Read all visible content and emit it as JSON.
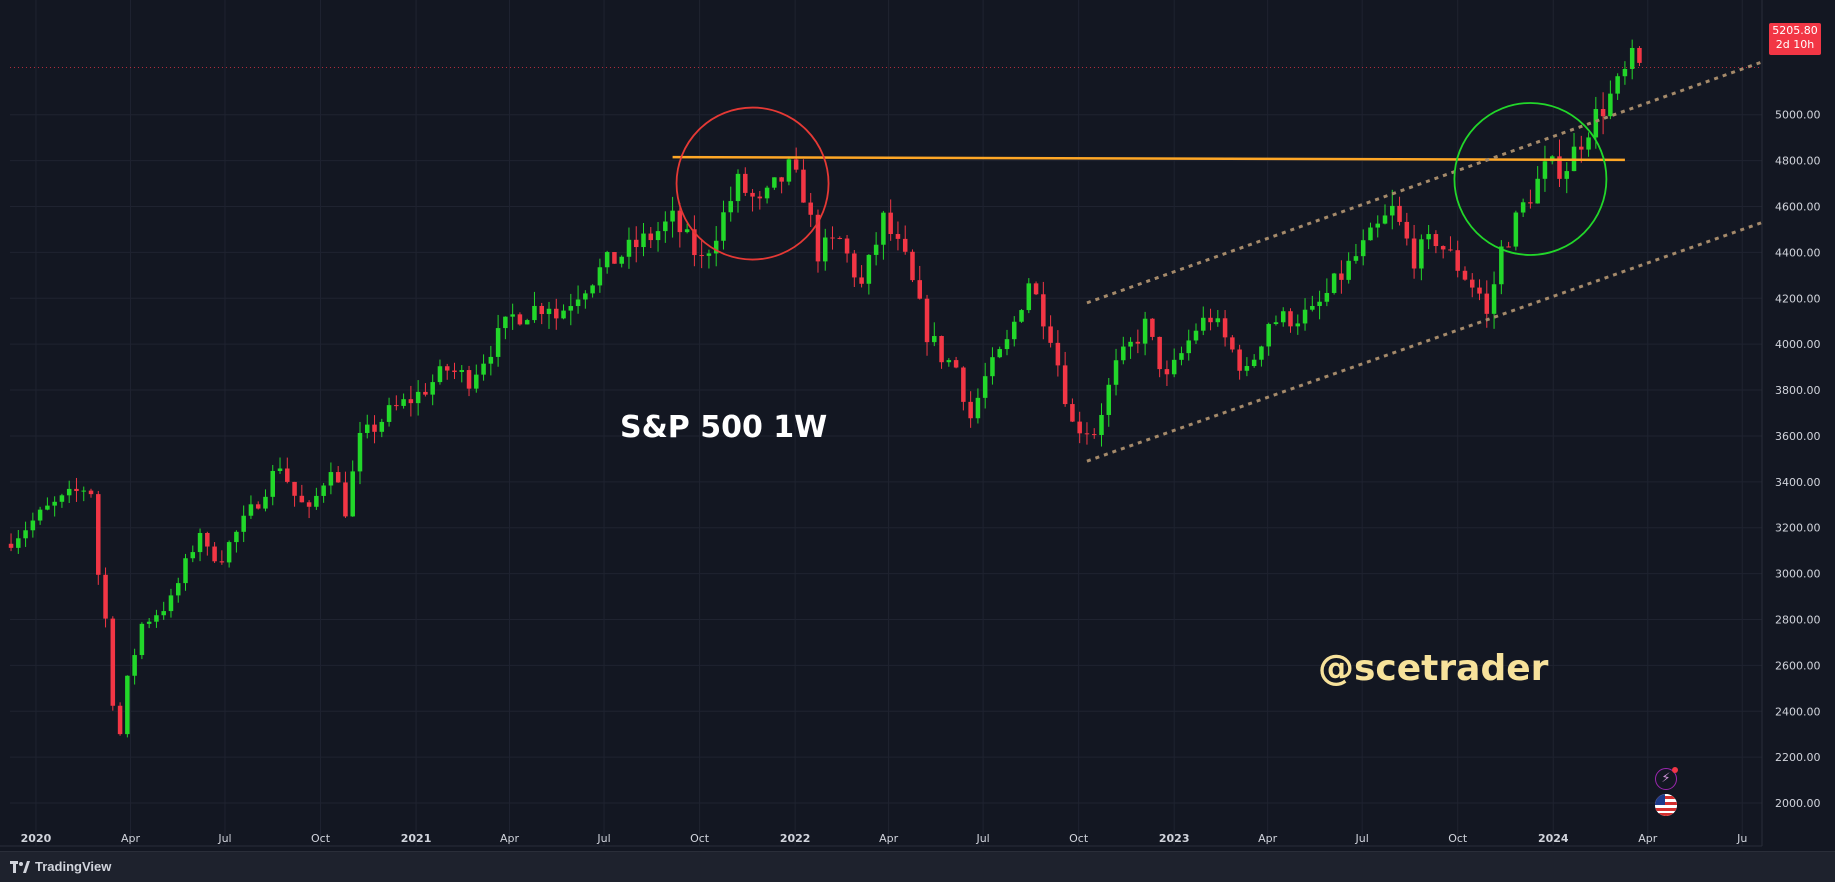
{
  "chart_data": {
    "type": "candlestick",
    "title": "S&P 500 1W",
    "ylim": [
      1900,
      5500
    ],
    "y_ticks": [
      2000,
      2200,
      2400,
      2600,
      2800,
      3000,
      3200,
      3400,
      3600,
      3800,
      4000,
      4200,
      4400,
      4600,
      4800,
      5000
    ],
    "x_ticks": [
      {
        "label": "2020",
        "date": "2020-01-01",
        "bold": true
      },
      {
        "label": "Apr",
        "date": "2020-04-01"
      },
      {
        "label": "Jul",
        "date": "2020-07-01"
      },
      {
        "label": "Oct",
        "date": "2020-10-01"
      },
      {
        "label": "2021",
        "date": "2021-01-01",
        "bold": true
      },
      {
        "label": "Apr",
        "date": "2021-04-01"
      },
      {
        "label": "Jul",
        "date": "2021-07-01"
      },
      {
        "label": "Oct",
        "date": "2021-10-01"
      },
      {
        "label": "2022",
        "date": "2022-01-01",
        "bold": true
      },
      {
        "label": "Apr",
        "date": "2022-04-01"
      },
      {
        "label": "Jul",
        "date": "2022-07-01"
      },
      {
        "label": "Oct",
        "date": "2022-10-01"
      },
      {
        "label": "2023",
        "date": "2023-01-01",
        "bold": true
      },
      {
        "label": "Apr",
        "date": "2023-04-01"
      },
      {
        "label": "Jul",
        "date": "2023-07-01"
      },
      {
        "label": "Oct",
        "date": "2023-10-01"
      },
      {
        "label": "2024",
        "date": "2024-01-01",
        "bold": true
      },
      {
        "label": "Apr",
        "date": "2024-04-01"
      },
      {
        "label": "Ju",
        "date": "2024-07-01"
      }
    ],
    "x_range": [
      "2019-12-07",
      "2024-07-20"
    ],
    "last_price": "5205.80",
    "countdown": "2d 10h",
    "colors": {
      "up": "#22d72a",
      "down": "#f23645",
      "background": "#131722",
      "grid": "#1f2330"
    },
    "price_path": [
      [
        "2019-12-08",
        3150
      ],
      [
        "2020-01-12",
        3280
      ],
      [
        "2020-02-19",
        3380
      ],
      [
        "2020-02-23",
        3360
      ],
      [
        "2020-03-01",
        3000
      ],
      [
        "2020-03-08",
        2800
      ],
      [
        "2020-03-15",
        2450
      ],
      [
        "2020-03-22",
        2300
      ],
      [
        "2020-03-29",
        2530
      ],
      [
        "2020-04-12",
        2780
      ],
      [
        "2020-05-10",
        2880
      ],
      [
        "2020-06-07",
        3190
      ],
      [
        "2020-06-14",
        3090
      ],
      [
        "2020-06-28",
        3080
      ],
      [
        "2020-07-26",
        3270
      ],
      [
        "2020-08-23",
        3480
      ],
      [
        "2020-09-06",
        3340
      ],
      [
        "2020-09-20",
        3260
      ],
      [
        "2020-10-11",
        3480
      ],
      [
        "2020-10-25",
        3280
      ],
      [
        "2020-11-08",
        3580
      ],
      [
        "2020-12-06",
        3700
      ],
      [
        "2021-01-03",
        3780
      ],
      [
        "2021-01-31",
        3890
      ],
      [
        "2021-02-21",
        3850
      ],
      [
        "2021-03-07",
        3940
      ],
      [
        "2021-04-04",
        4120
      ],
      [
        "2021-05-09",
        4180
      ],
      [
        "2021-05-16",
        4120
      ],
      [
        "2021-06-06",
        4230
      ],
      [
        "2021-07-04",
        4350
      ],
      [
        "2021-08-15",
        4470
      ],
      [
        "2021-09-05",
        4540
      ],
      [
        "2021-10-03",
        4360
      ],
      [
        "2021-10-24",
        4560
      ],
      [
        "2021-11-07",
        4700
      ],
      [
        "2021-11-28",
        4600
      ],
      [
        "2021-12-26",
        4760
      ],
      [
        "2022-01-09",
        4660
      ],
      [
        "2022-01-23",
        4400
      ],
      [
        "2022-02-13",
        4450
      ],
      [
        "2022-03-06",
        4250
      ],
      [
        "2022-03-27",
        4540
      ],
      [
        "2022-04-17",
        4360
      ],
      [
        "2022-05-08",
        4050
      ],
      [
        "2022-05-22",
        3950
      ],
      [
        "2022-06-05",
        3900
      ],
      [
        "2022-06-19",
        3680
      ],
      [
        "2022-07-03",
        3850
      ],
      [
        "2022-07-24",
        4000
      ],
      [
        "2022-08-14",
        4280
      ],
      [
        "2022-09-04",
        4050
      ],
      [
        "2022-09-25",
        3650
      ],
      [
        "2022-10-16",
        3620
      ],
      [
        "2022-11-06",
        3900
      ],
      [
        "2022-12-04",
        4080
      ],
      [
        "2022-12-25",
        3840
      ],
      [
        "2023-01-22",
        4070
      ],
      [
        "2023-02-05",
        4120
      ],
      [
        "2023-03-12",
        3870
      ],
      [
        "2023-04-02",
        4100
      ],
      [
        "2023-05-14",
        4130
      ],
      [
        "2023-06-11",
        4300
      ],
      [
        "2023-07-30",
        4580
      ],
      [
        "2023-08-20",
        4380
      ],
      [
        "2023-09-10",
        4460
      ],
      [
        "2023-10-22",
        4220
      ],
      [
        "2023-10-29",
        4120
      ],
      [
        "2023-11-12",
        4410
      ],
      [
        "2023-12-03",
        4600
      ],
      [
        "2023-12-24",
        4760
      ],
      [
        "2024-01-14",
        4780
      ],
      [
        "2024-02-04",
        4950
      ],
      [
        "2024-03-03",
        5120
      ],
      [
        "2024-03-17",
        5230
      ],
      [
        "2024-03-24",
        5205.8
      ]
    ],
    "annotations": {
      "resistance_line": {
        "from": [
          "2021-09-05",
          4815
        ],
        "to": [
          "2024-03-10",
          4803
        ],
        "color": "#ffa726"
      },
      "channel_upper": {
        "from": [
          "2022-10-09",
          4180
        ],
        "to": [
          "2024-07-20",
          5230
        ],
        "color": "#a58a6a"
      },
      "channel_lower": {
        "from": [
          "2022-10-09",
          3490
        ],
        "to": [
          "2024-07-20",
          4530
        ],
        "color": "#a58a6a"
      },
      "red_circle": {
        "center": [
          "2021-11-21",
          4700
        ],
        "color": "#e53935"
      },
      "green_circle": {
        "center": [
          "2023-12-10",
          4720
        ],
        "color": "#22d72a"
      }
    }
  },
  "labels": {
    "chart_title": "S&P 500 1W",
    "watermark": "@scetrader",
    "brand": "TradingView"
  },
  "icons": [
    "lightning-icon",
    "us-flag-icon",
    "tradingview-logo-icon"
  ]
}
